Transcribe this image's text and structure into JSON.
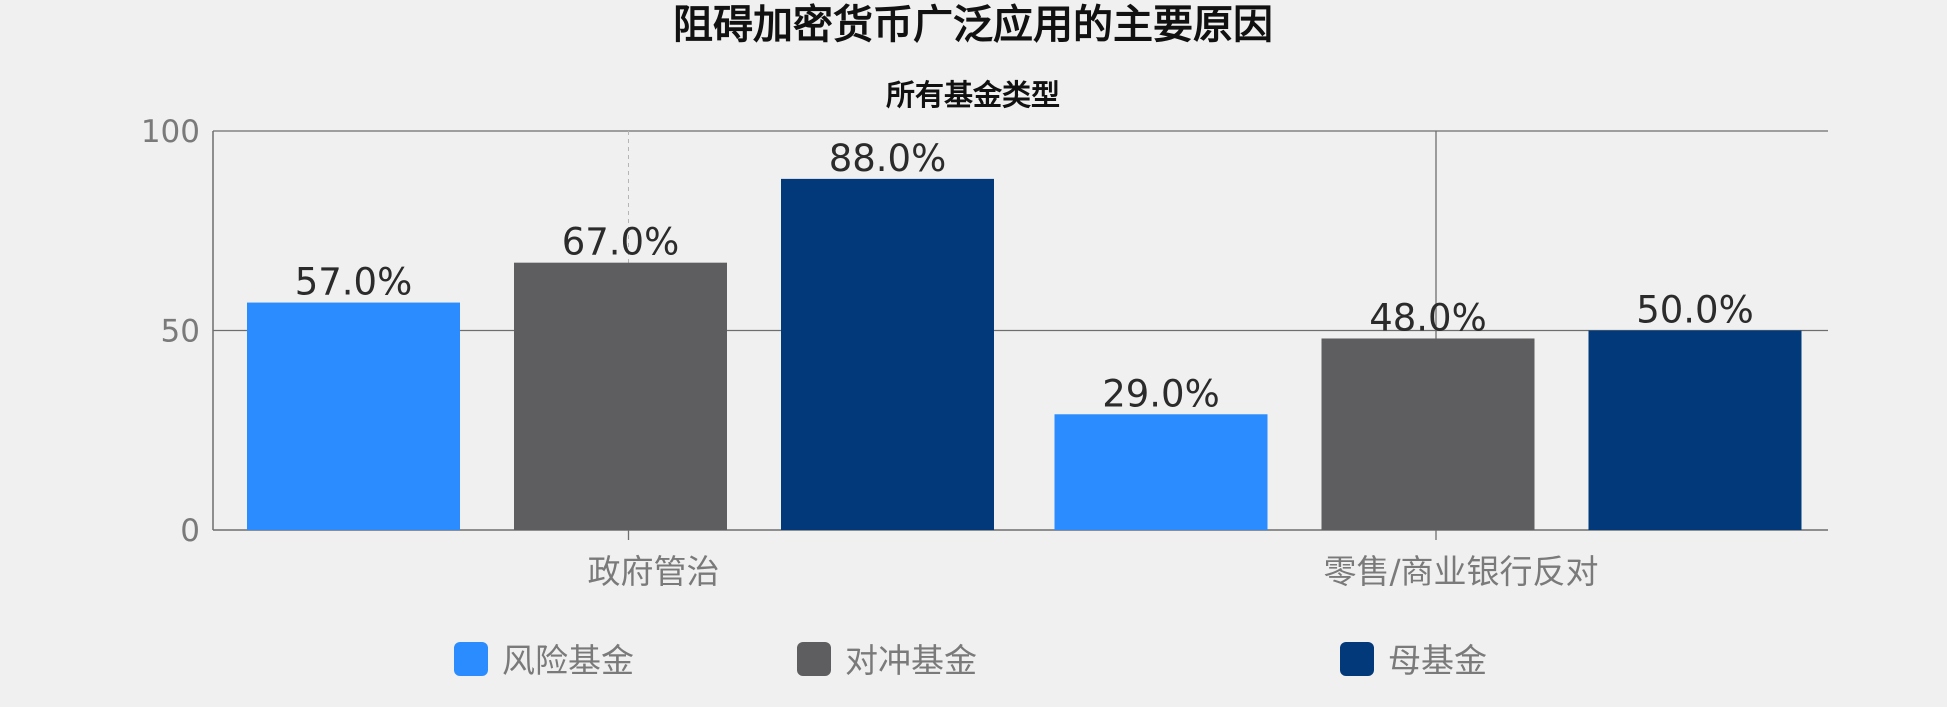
{
  "chart_data": {
    "type": "bar",
    "title": "阻碍加密货币广泛应用的主要原因",
    "subtitle": "所有基金类型",
    "xlabel": "",
    "ylabel": "",
    "categories": [
      "政府管治",
      "零售/商业银行反对"
    ],
    "series": [
      {
        "name": "风险基金",
        "color": "#2a8cff",
        "values": [
          57.0,
          29.0
        ],
        "labels": [
          "57.0%",
          "29.0%"
        ]
      },
      {
        "name": "对冲基金",
        "color": "#5e5e60",
        "values": [
          67.0,
          48.0
        ],
        "labels": [
          "67.0%",
          "48.0%"
        ]
      },
      {
        "name": "母基金",
        "color": "#02397a",
        "values": [
          88.0,
          50.0
        ],
        "labels": [
          "88.0%",
          "50.0%"
        ]
      }
    ],
    "ylim": [
      0,
      100
    ],
    "yticks": [
      0,
      50,
      100
    ],
    "ytick_labels": [
      "0",
      "50",
      "100"
    ],
    "grid": true,
    "legend_position": "bottom"
  }
}
